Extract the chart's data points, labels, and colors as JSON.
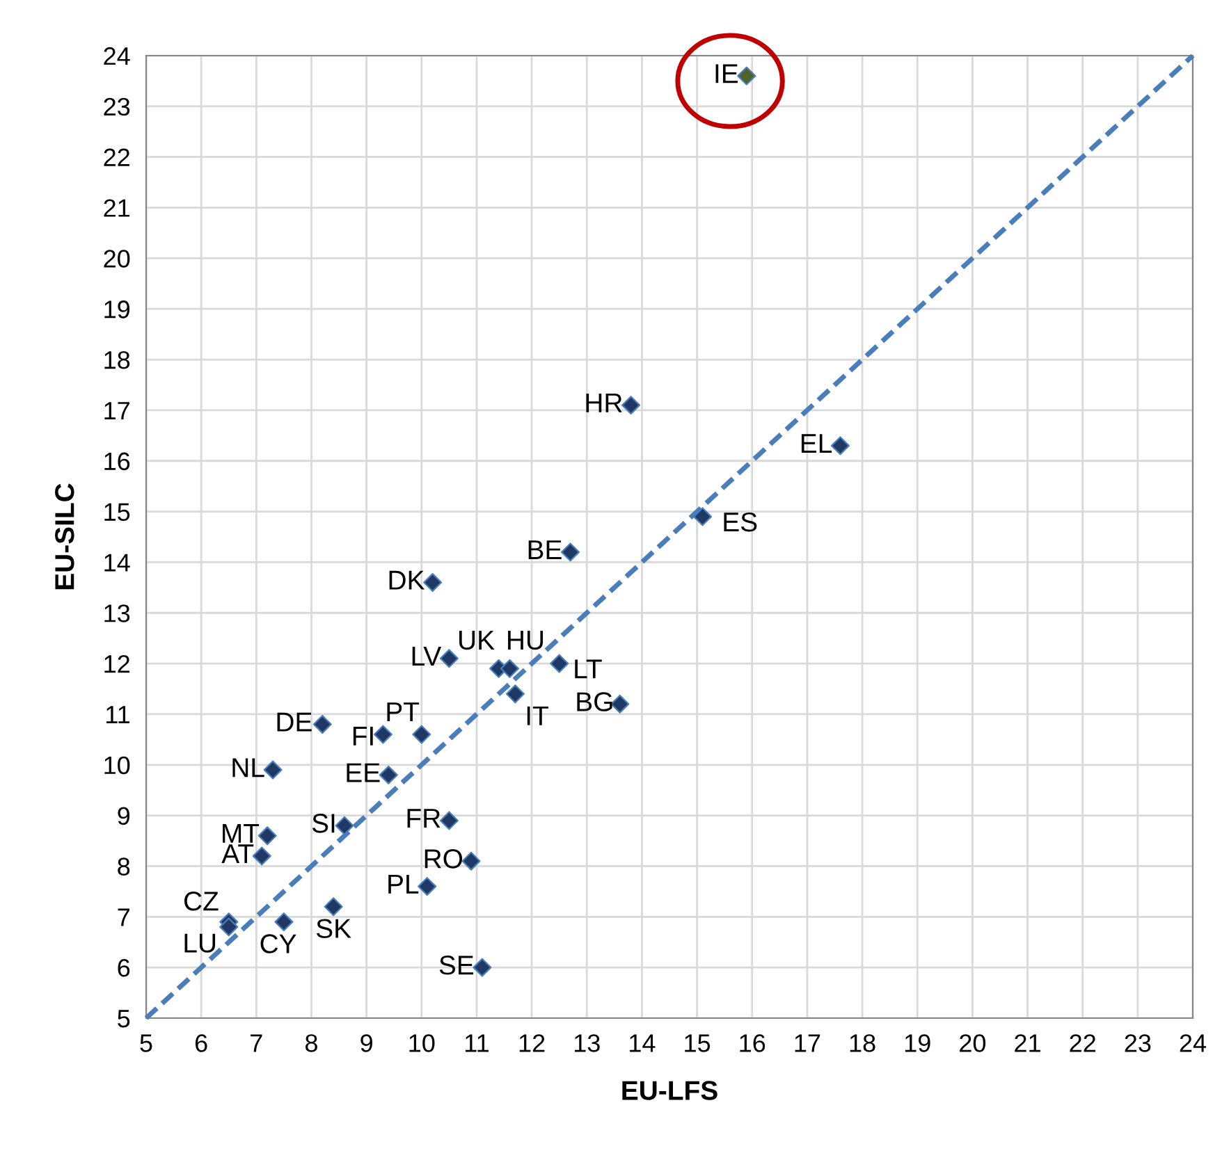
{
  "chart_data": {
    "type": "scatter",
    "xlabel": "EU-LFS",
    "ylabel": "EU-SILC",
    "xlim": [
      5,
      24
    ],
    "ylim": [
      5,
      24
    ],
    "xticks": [
      5,
      6,
      7,
      8,
      9,
      10,
      11,
      12,
      13,
      14,
      15,
      16,
      17,
      18,
      19,
      20,
      21,
      22,
      23,
      24
    ],
    "yticks": [
      5,
      6,
      7,
      8,
      9,
      10,
      11,
      12,
      13,
      14,
      15,
      16,
      17,
      18,
      19,
      20,
      21,
      22,
      23,
      24
    ],
    "grid": true,
    "marker": "diamond",
    "series": [
      {
        "colors": [
          "#4f6228",
          "#1f3864",
          "#1f3864",
          "#1f3864",
          "#1f3864",
          "#1f3864",
          "#1f3864",
          "#1f3864",
          "#1f3864",
          "#1f3864",
          "#1f3864",
          "#1f3864",
          "#1f3864",
          "#1f3864",
          "#1f3864",
          "#1f3864",
          "#1f3864",
          "#1f3864",
          "#1f3864",
          "#1f3864",
          "#1f3864",
          "#1f3864",
          "#1f3864",
          "#1f3864",
          "#1f3864",
          "#1f3864",
          "#1f3864",
          "#1f3864"
        ],
        "x": [
          15.9,
          13.8,
          17.6,
          15.1,
          12.7,
          10.2,
          10.5,
          11.4,
          11.6,
          12.5,
          11.7,
          13.6,
          8.2,
          9.3,
          10.0,
          7.3,
          9.4,
          8.6,
          10.5,
          7.2,
          7.1,
          10.9,
          10.1,
          8.4,
          6.5,
          6.5,
          7.5,
          11.1
        ],
        "values": [
          23.6,
          17.1,
          16.3,
          14.9,
          14.2,
          13.6,
          12.1,
          11.9,
          11.9,
          12.0,
          11.4,
          11.2,
          10.8,
          10.6,
          10.6,
          9.9,
          9.8,
          8.8,
          8.9,
          8.6,
          8.2,
          8.1,
          7.6,
          7.2,
          6.9,
          6.8,
          6.9,
          6.0
        ]
      },
      {
        "type": "line",
        "color": "#4a7ebb",
        "line_style": "dashed",
        "marker": "none",
        "x": [
          5,
          24
        ],
        "values": [
          5,
          24
        ]
      }
    ],
    "annotations": [
      {
        "text": "IE",
        "x": 15.9,
        "y": 23.6
      },
      {
        "text": "HR",
        "x": 13.8,
        "y": 17.1
      },
      {
        "text": "EL",
        "x": 17.6,
        "y": 16.3
      },
      {
        "text": "ES",
        "x": 15.1,
        "y": 14.9
      },
      {
        "text": "BE",
        "x": 12.7,
        "y": 14.2
      },
      {
        "text": "DK",
        "x": 10.2,
        "y": 13.6
      },
      {
        "text": "LV",
        "x": 10.5,
        "y": 12.1
      },
      {
        "text": "UK",
        "x": 11.4,
        "y": 11.9
      },
      {
        "text": "HU",
        "x": 11.6,
        "y": 11.9
      },
      {
        "text": "LT",
        "x": 12.5,
        "y": 12.0
      },
      {
        "text": "IT",
        "x": 11.7,
        "y": 11.4
      },
      {
        "text": "BG",
        "x": 13.6,
        "y": 11.2
      },
      {
        "text": "DE",
        "x": 8.2,
        "y": 10.8
      },
      {
        "text": "FI",
        "x": 9.3,
        "y": 10.6
      },
      {
        "text": "PT",
        "x": 10.0,
        "y": 10.6
      },
      {
        "text": "NL",
        "x": 7.3,
        "y": 9.9
      },
      {
        "text": "EE",
        "x": 9.4,
        "y": 9.8
      },
      {
        "text": "SI",
        "x": 8.6,
        "y": 8.8
      },
      {
        "text": "FR",
        "x": 10.5,
        "y": 8.9
      },
      {
        "text": "MT",
        "x": 7.2,
        "y": 8.6
      },
      {
        "text": "AT",
        "x": 7.1,
        "y": 8.2
      },
      {
        "text": "RO",
        "x": 10.9,
        "y": 8.1
      },
      {
        "text": "PL",
        "x": 10.1,
        "y": 7.6
      },
      {
        "text": "SK",
        "x": 8.4,
        "y": 7.2
      },
      {
        "text": "CZ",
        "x": 6.5,
        "y": 6.9
      },
      {
        "text": "LU",
        "x": 6.5,
        "y": 6.8
      },
      {
        "text": "CY",
        "x": 7.5,
        "y": 6.9
      },
      {
        "text": "SE",
        "x": 11.1,
        "y": 6.0
      }
    ]
  }
}
